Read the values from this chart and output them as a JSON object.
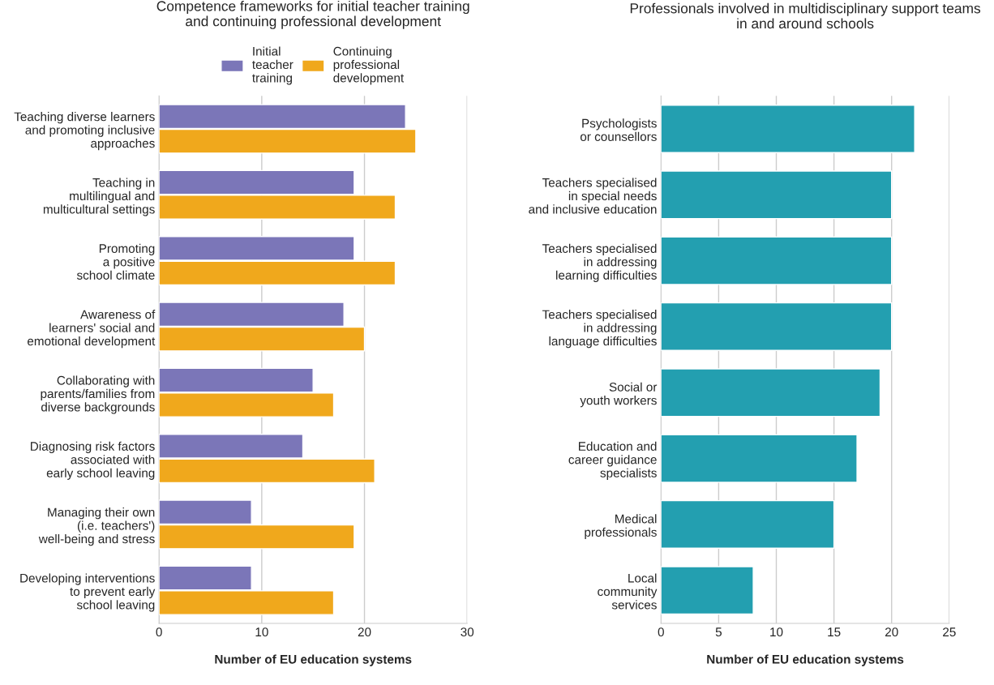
{
  "chart_data": [
    {
      "type": "bar",
      "orientation": "horizontal",
      "title": "Competence frameworks for initial teacher training\nand continuing professional development",
      "xlabel": "Number of EU education systems",
      "categories": [
        "Teaching diverse learners\nand promoting inclusive\napproaches",
        "Teaching in\nmultilingual and\nmulticultural settings",
        "Promoting\na positive\nschool climate",
        "Awareness of\nlearners' social and\nemotional development",
        "Collaborating with\nparents/families from\ndiverse backgrounds",
        "Diagnosing risk factors\nassociated with\nearly school leaving",
        "Managing their own\n(i.e. teachers')\nwell-being and stress",
        "Developing interventions\nto prevent early\nschool leaving"
      ],
      "series": [
        {
          "name": "Initial\nteacher\ntraining",
          "color": "#7b76b8",
          "values": [
            24,
            19,
            19,
            18,
            15,
            14,
            9,
            9
          ]
        },
        {
          "name": "Continuing\nprofessional\ndevelopment",
          "color": "#f0a81c",
          "values": [
            25,
            23,
            23,
            20,
            17,
            21,
            19,
            17
          ]
        }
      ],
      "xlim": [
        0,
        30
      ],
      "xticks": [
        0,
        10,
        20,
        30
      ],
      "grid": "x",
      "legend": "top"
    },
    {
      "type": "bar",
      "orientation": "horizontal",
      "title": "Professionals involved in multidisciplinary support teams\nin and around schools",
      "xlabel": "Number of EU education systems",
      "categories": [
        "Psychologists\nor counsellors",
        "Teachers specialised\nin special needs\nand inclusive education",
        "Teachers specialised\nin addressing\nlearning difficulties",
        "Teachers specialised\nin addressing\nlanguage difficulties",
        "Social or\nyouth workers",
        "Education and\ncareer guidance\nspecialists",
        "Medical\nprofessionals",
        "Local\ncommunity\nservices"
      ],
      "series": [
        {
          "color": "#239fb0",
          "values": [
            22,
            20,
            20,
            20,
            19,
            17,
            15,
            8
          ]
        }
      ],
      "xlim": [
        0,
        25
      ],
      "xticks": [
        0,
        5,
        10,
        15,
        20,
        25
      ],
      "grid": "x"
    }
  ]
}
